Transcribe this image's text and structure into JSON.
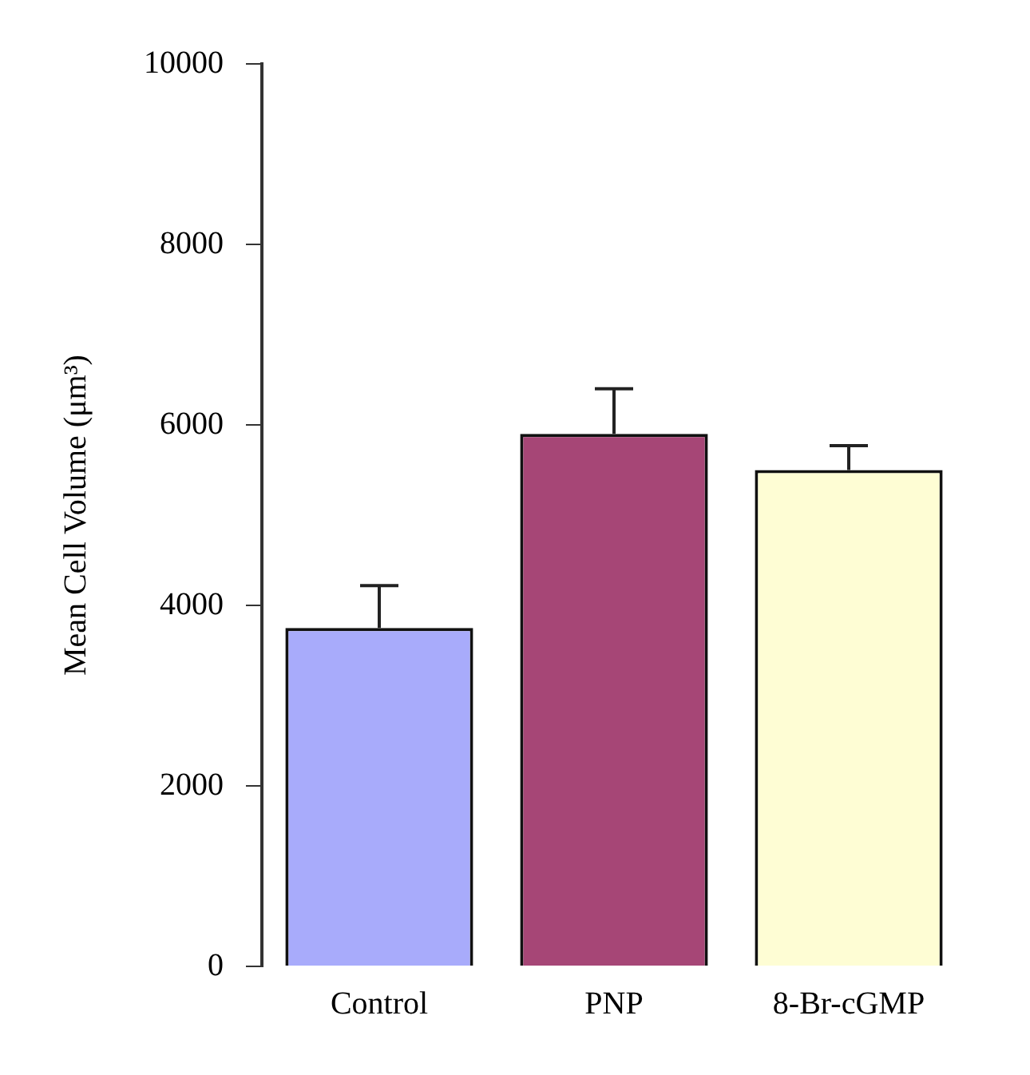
{
  "chart_data": {
    "type": "bar",
    "ylabel": "Mean Cell Volume (μm³)",
    "categories": [
      "Control",
      "PNP",
      "8-Br-cGMP"
    ],
    "values": [
      3750,
      5900,
      5500
    ],
    "colors": [
      "#a8abfb",
      "#a64676",
      "#fefdd4"
    ],
    "errors": [
      [
        3750,
        4220
      ],
      [
        5900,
        6400
      ],
      [
        5500,
        5770
      ]
    ],
    "ylim": [
      0,
      10000
    ],
    "yticks": [
      0,
      2000,
      4000,
      6000,
      8000,
      10000
    ],
    "grid": false,
    "legend": false
  }
}
